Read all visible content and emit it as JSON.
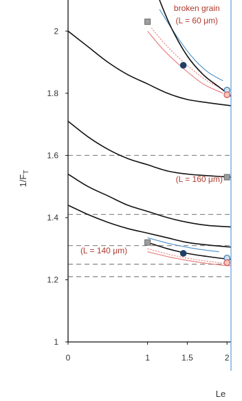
{
  "chart_data": {
    "type": "line",
    "ylabel": "1/F",
    "ylabel_sub": "T",
    "xlabel": "Le",
    "xlim": [
      0,
      2.05
    ],
    "ylim": [
      1,
      2.1
    ],
    "x_ticks": [
      {
        "v": 0,
        "label": "0"
      },
      {
        "v": 1,
        "label": "1"
      },
      {
        "v": 1.5,
        "label": "1.5"
      },
      {
        "v": 2,
        "label": "2"
      }
    ],
    "y_ticks": [
      {
        "v": 1,
        "label": "1"
      },
      {
        "v": 1.2,
        "label": "1.2"
      },
      {
        "v": 1.4,
        "label": "1.4"
      },
      {
        "v": 1.6,
        "label": "1.6"
      },
      {
        "v": 1.8,
        "label": "1.8"
      },
      {
        "v": 2,
        "label": "2"
      }
    ],
    "hlines": [
      1.6,
      1.41,
      1.31,
      1.25,
      1.21
    ],
    "curves": [
      {
        "x": [
          1.15,
          1.3,
          1.5,
          1.7,
          1.9,
          2.05
        ],
        "y": [
          2.1,
          2.01,
          1.92,
          1.86,
          1.82,
          1.79
        ]
      },
      {
        "x": [
          0,
          0.25,
          0.5,
          0.75,
          1.0,
          1.25,
          1.5,
          1.75,
          2.05
        ],
        "y": [
          2.0,
          1.95,
          1.9,
          1.86,
          1.83,
          1.8,
          1.78,
          1.77,
          1.76
        ]
      },
      {
        "x": [
          0,
          0.25,
          0.5,
          0.75,
          1.0,
          1.25,
          1.5,
          1.75,
          2.05
        ],
        "y": [
          1.71,
          1.66,
          1.62,
          1.59,
          1.57,
          1.55,
          1.54,
          1.535,
          1.53
        ]
      },
      {
        "x": [
          0,
          0.25,
          0.5,
          0.75,
          1.0,
          1.25,
          1.5,
          1.75,
          2.05
        ],
        "y": [
          1.54,
          1.5,
          1.47,
          1.44,
          1.42,
          1.4,
          1.385,
          1.375,
          1.37
        ]
      },
      {
        "x": [
          0,
          0.25,
          0.5,
          0.75,
          1.0,
          1.25,
          1.5,
          1.75,
          2.05
        ],
        "y": [
          1.44,
          1.41,
          1.385,
          1.365,
          1.35,
          1.335,
          1.32,
          1.312,
          1.305
        ]
      },
      {
        "x": [
          1.0,
          1.25,
          1.5,
          1.75,
          2.05
        ],
        "y": [
          1.32,
          1.3,
          1.285,
          1.275,
          1.265
        ]
      }
    ],
    "companion_curves": [
      {
        "color": "#4a90c8",
        "dash": "",
        "x": [
          1.15,
          1.35,
          1.55,
          1.75,
          1.95
        ],
        "y": [
          2.07,
          1.99,
          1.92,
          1.87,
          1.84
        ]
      },
      {
        "color": "#e57373",
        "dash": "",
        "x": [
          1.0,
          1.2,
          1.45,
          1.7,
          1.95
        ],
        "y": [
          2.0,
          1.94,
          1.88,
          1.83,
          1.8
        ]
      },
      {
        "color": "#e57373",
        "dash": "2,2",
        "x": [
          1.05,
          1.25,
          1.5,
          1.75,
          1.98
        ],
        "y": [
          2.01,
          1.95,
          1.89,
          1.84,
          1.81
        ]
      },
      {
        "color": "#4a90c8",
        "dash": "",
        "x": [
          1.0,
          1.3,
          1.6,
          1.9
        ],
        "y": [
          1.335,
          1.315,
          1.3,
          1.29
        ]
      },
      {
        "color": "#e57373",
        "dash": "2,2",
        "x": [
          1.0,
          1.3,
          1.6,
          1.9,
          2.05
        ],
        "y": [
          1.3,
          1.28,
          1.265,
          1.255,
          1.25
        ]
      },
      {
        "color": "#e57373",
        "dash": "",
        "x": [
          1.0,
          1.3,
          1.6,
          1.9,
          2.05
        ],
        "y": [
          1.29,
          1.272,
          1.258,
          1.248,
          1.245
        ]
      }
    ],
    "markers": [
      {
        "x": 1.0,
        "y": 2.03,
        "shape": "square",
        "fill": "#9e9e9e",
        "stroke": "#666666"
      },
      {
        "x": 1.45,
        "y": 1.89,
        "shape": "circle",
        "fill": "#1f3f66",
        "stroke": "#1f3f66"
      },
      {
        "x": 2.0,
        "y": 1.81,
        "shape": "circle",
        "fill": "#cfe0ef",
        "stroke": "#3f78aa"
      },
      {
        "x": 2.0,
        "y": 1.795,
        "shape": "circle",
        "fill": "#f3c8c2",
        "stroke": "#d9534f"
      },
      {
        "x": 2.0,
        "y": 1.53,
        "shape": "square",
        "fill": "#9e9e9e",
        "stroke": "#666666"
      },
      {
        "x": 1.0,
        "y": 1.32,
        "shape": "square",
        "fill": "#9e9e9e",
        "stroke": "#666666"
      },
      {
        "x": 1.45,
        "y": 1.285,
        "shape": "circle",
        "fill": "#1f3f66",
        "stroke": "#1f3f66"
      },
      {
        "x": 2.0,
        "y": 1.27,
        "shape": "circle",
        "fill": "#cfe0ef",
        "stroke": "#3f78aa"
      },
      {
        "x": 2.0,
        "y": 1.255,
        "shape": "circle",
        "fill": "#f3c8c2",
        "stroke": "#d9534f"
      }
    ],
    "annotations": [
      {
        "text": "broken grain",
        "x": 1.62,
        "y": 2.065
      },
      {
        "text": "(L = 60 μm)",
        "x": 1.62,
        "y": 2.025
      },
      {
        "text": "(L = 160 μm)",
        "x": 1.65,
        "y": 1.515
      },
      {
        "text": "(L = 140 μm)",
        "x": 0.45,
        "y": 1.285
      }
    ]
  }
}
